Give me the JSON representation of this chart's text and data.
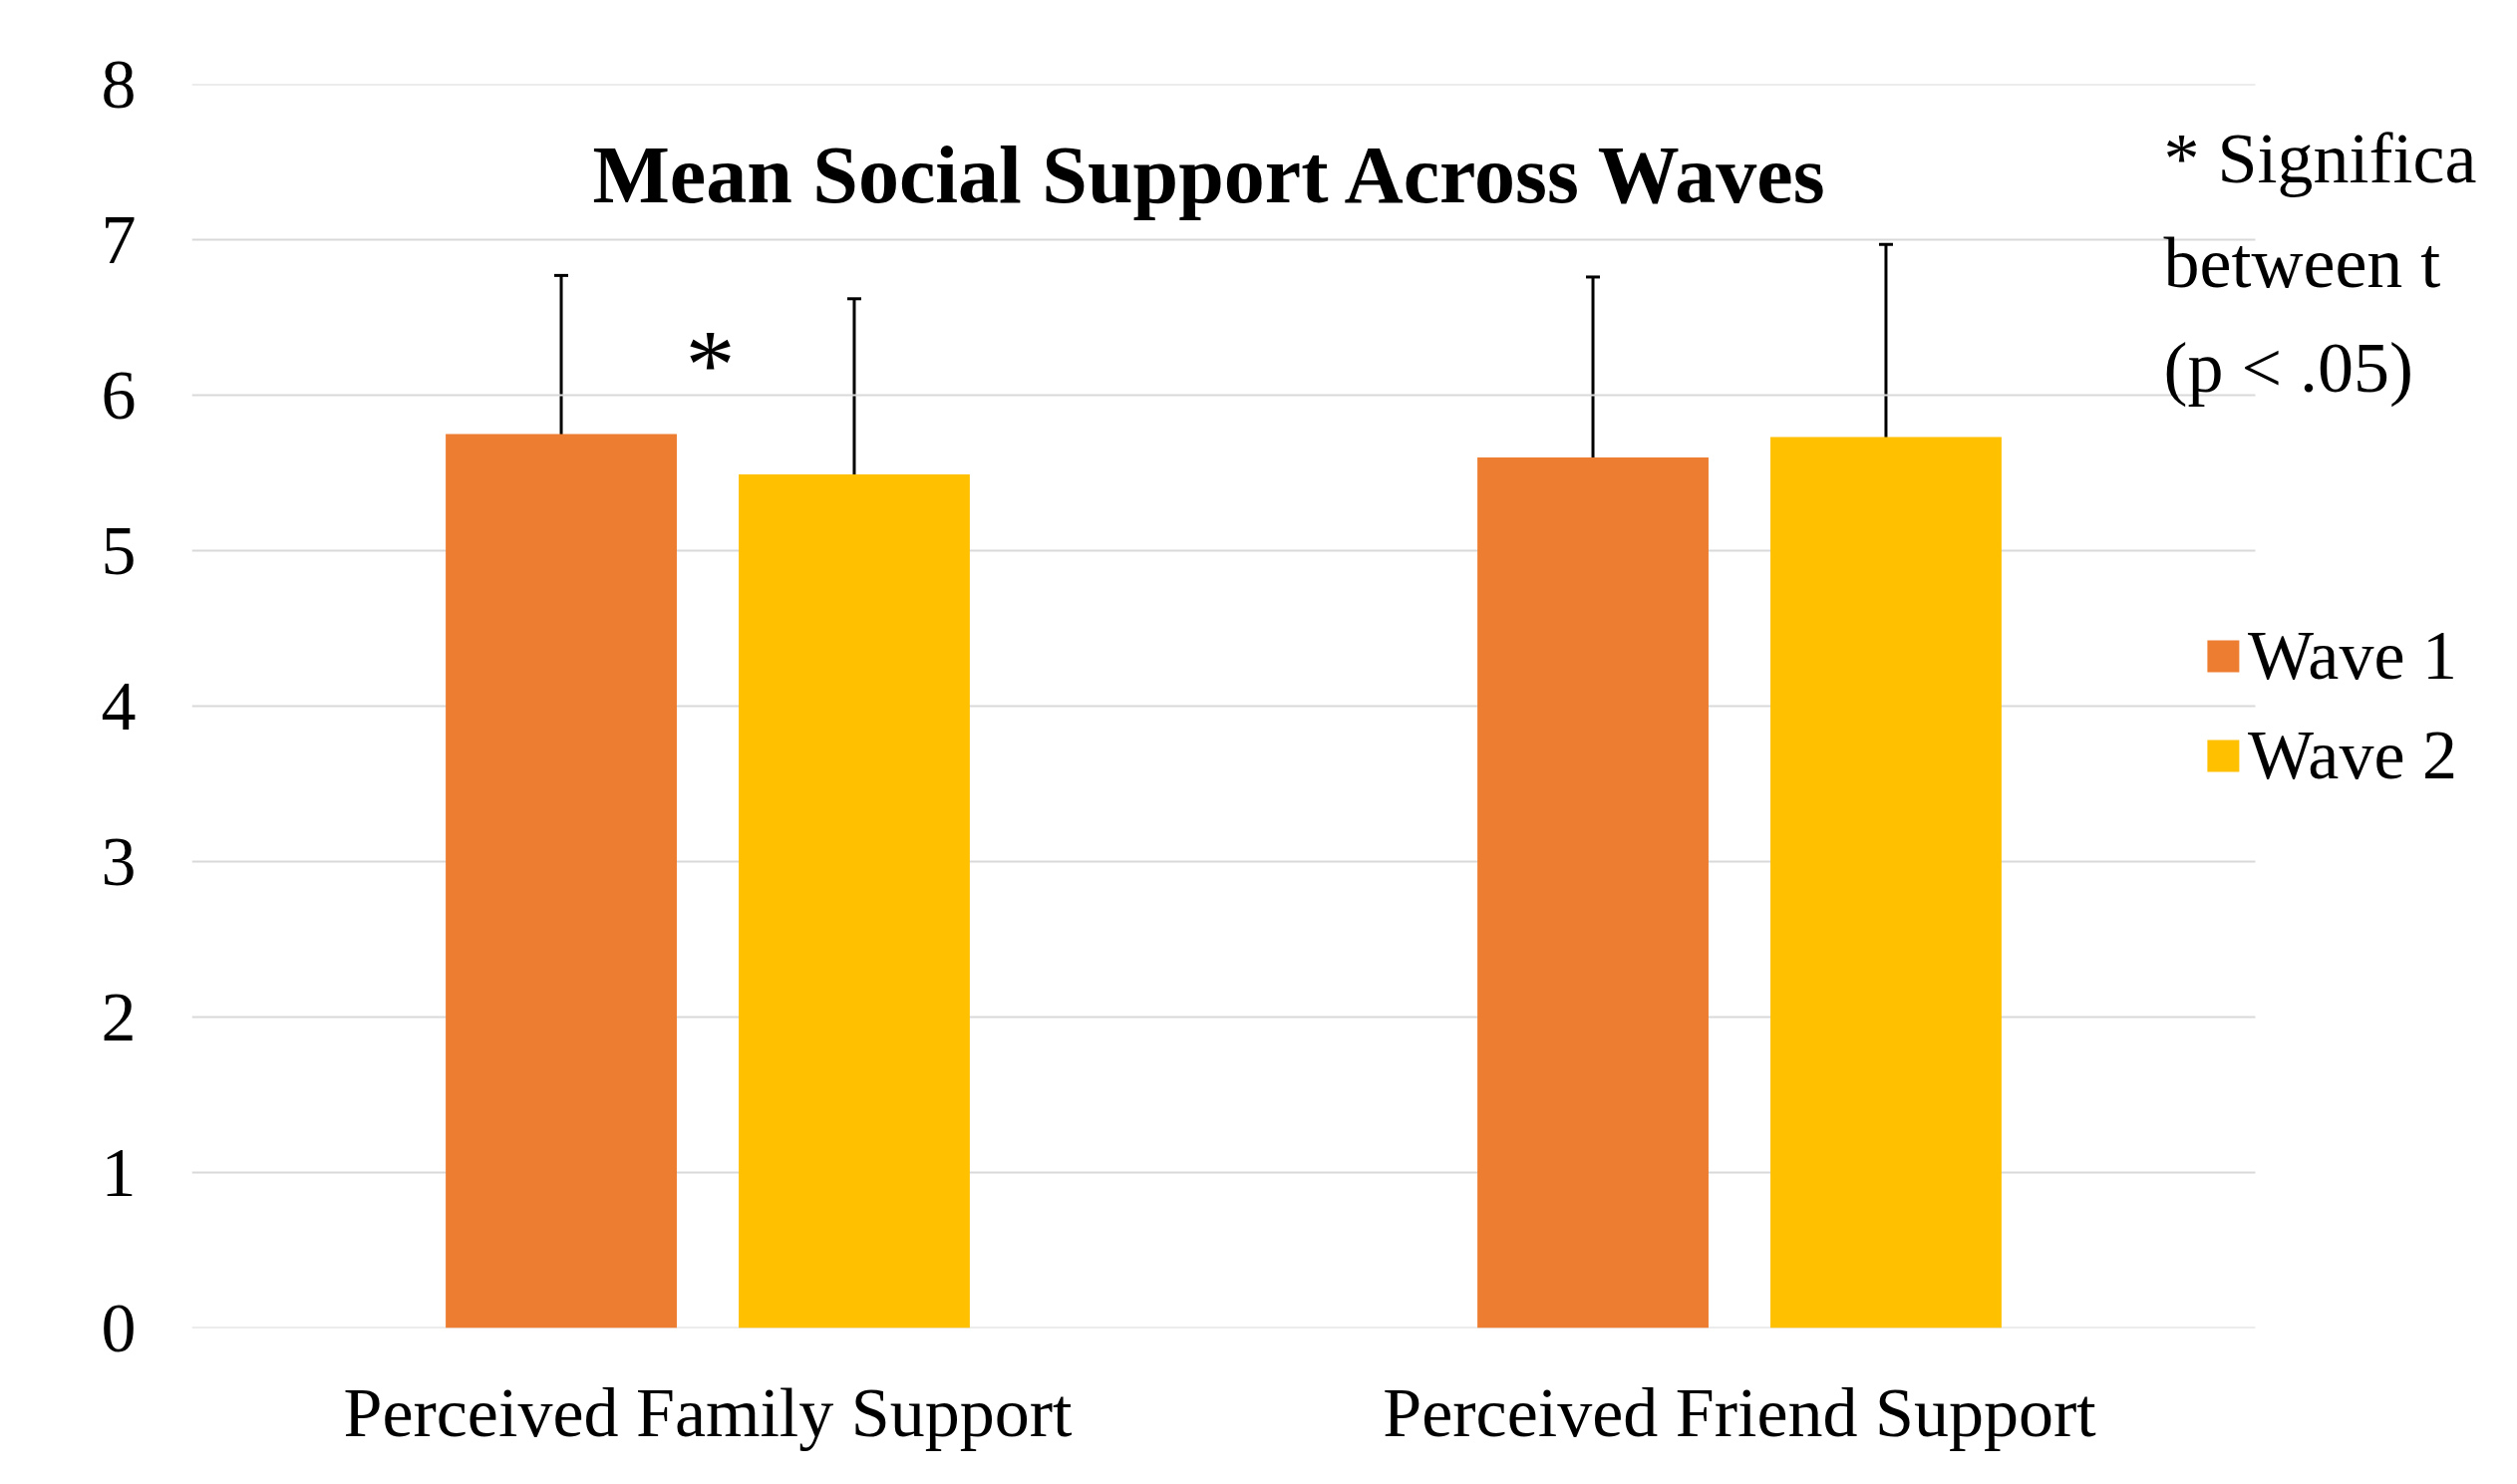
{
  "chart_data": {
    "type": "bar",
    "title": "Mean Social Support Across Waves",
    "categories": [
      "Perceived Family Support",
      "Perceived Friend Support"
    ],
    "series": [
      {
        "name": "Wave 1",
        "color": "#ed7d31",
        "values": [
          5.75,
          5.6
        ],
        "errors": [
          1.02,
          1.16
        ]
      },
      {
        "name": "Wave 2",
        "color": "#ffc000",
        "values": [
          5.49,
          5.73
        ],
        "errors": [
          1.13,
          1.24
        ]
      }
    ],
    "ylim": [
      0,
      8
    ],
    "yticks": [
      0,
      1,
      2,
      3,
      4,
      5,
      6,
      7,
      8
    ],
    "grid": "y",
    "legend": "right",
    "annotations": [
      "*",
      "* Significa",
      "between t",
      " (p < .05)"
    ]
  }
}
